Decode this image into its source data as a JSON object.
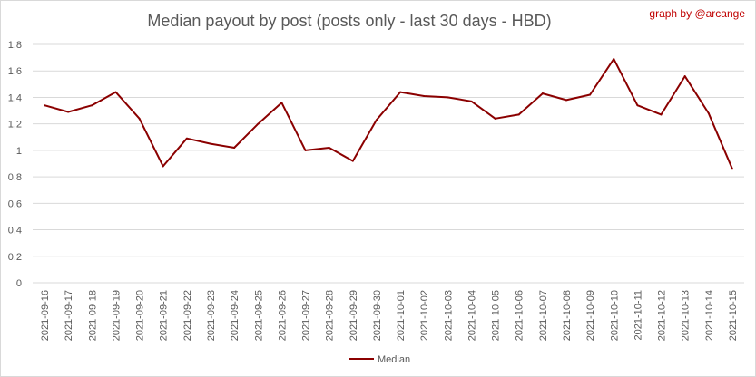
{
  "chart_data": {
    "type": "line",
    "title": "Median payout by post (posts only - last 30 days - HBD)",
    "credit": "graph by @arcange",
    "xlabel": "",
    "ylabel": "",
    "ylim": [
      0,
      1.8
    ],
    "yticks": [
      "0",
      "0,2",
      "0,4",
      "0,6",
      "0,8",
      "1",
      "1,2",
      "1,4",
      "1,6",
      "1,8"
    ],
    "grid": true,
    "legend_position": "bottom",
    "categories": [
      "2021-09-16",
      "2021-09-17",
      "2021-09-18",
      "2021-09-19",
      "2021-09-20",
      "2021-09-21",
      "2021-09-22",
      "2021-09-23",
      "2021-09-24",
      "2021-09-25",
      "2021-09-26",
      "2021-09-27",
      "2021-09-28",
      "2021-09-29",
      "2021-09-30",
      "2021-10-01",
      "2021-10-02",
      "2021-10-03",
      "2021-10-04",
      "2021-10-05",
      "2021-10-06",
      "2021-10-07",
      "2021-10-08",
      "2021-10-09",
      "2021-10-10",
      "2021-10-11",
      "2021-10-12",
      "2021-10-13",
      "2021-10-14",
      "2021-10-15"
    ],
    "series": [
      {
        "name": "Median",
        "color": "#8b0000",
        "values": [
          1.34,
          1.29,
          1.34,
          1.44,
          1.24,
          0.88,
          1.09,
          1.05,
          1.02,
          1.2,
          1.36,
          1.0,
          1.02,
          0.92,
          1.23,
          1.44,
          1.41,
          1.4,
          1.37,
          1.24,
          1.27,
          1.43,
          1.38,
          1.42,
          1.69,
          1.34,
          1.27,
          1.56,
          1.28,
          0.86
        ]
      }
    ]
  }
}
